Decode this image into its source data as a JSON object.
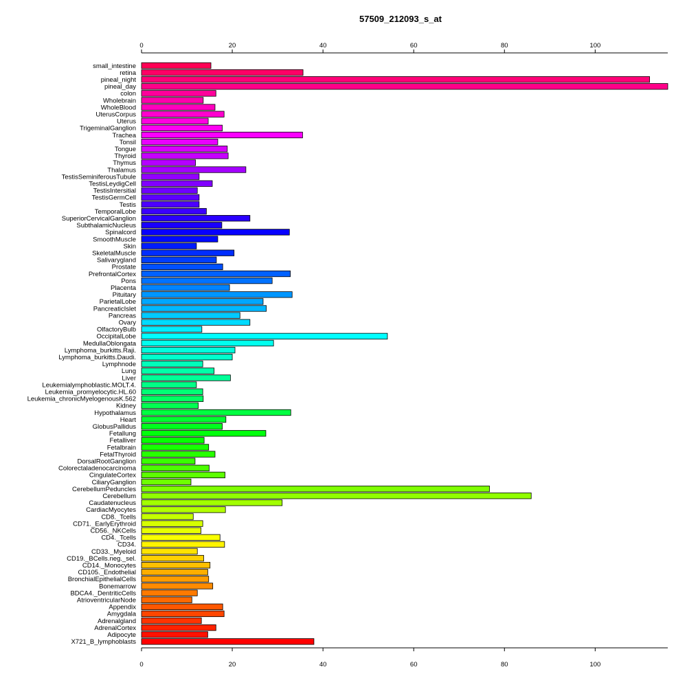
{
  "chart_data": {
    "type": "bar",
    "orientation": "horizontal",
    "title": "57509_212093_s_at",
    "xlabel": "",
    "ylabel": "",
    "xlim": [
      0,
      116
    ],
    "x_ticks": [
      "0",
      "20",
      "40",
      "60",
      "80",
      "100"
    ],
    "tick_values": [
      0,
      20,
      40,
      60,
      80,
      100
    ],
    "grid": false,
    "legend": "none",
    "categories": [
      "small_intestine",
      "retina",
      "pineal_night",
      "pineal_day",
      "colon",
      "Wholebrain",
      "WholeBlood",
      "UterusCorpus",
      "Uterus",
      "TrigeminalGanglion",
      "Trachea",
      "Tonsil",
      "Tongue",
      "Thyroid",
      "Thymus",
      "Thalamus",
      "TestisSeminiferousTubule",
      "TestisLeydigCell",
      "TestisIntersitial",
      "TestisGermCell",
      "Testis",
      "TemporalLobe",
      "SuperiorCervicalGanglion",
      "SubthalamicNucleus",
      "Spinalcord",
      "SmoothMuscle",
      "Skin",
      "SkeletalMuscle",
      "Salivarygland",
      "Prostate",
      "PrefrontalCortex",
      "Pons",
      "Placenta",
      "Pituitary",
      "ParietalLobe",
      "PancreaticIslet",
      "Pancreas",
      "Ovary",
      "OlfactoryBulb",
      "OccipitalLobe",
      "MedullaOblongata",
      "Lymphoma_burkitts.Raji.",
      "Lymphoma_burkitts.Daudi.",
      "Lymphnode",
      "Lung",
      "Liver",
      "Leukemialymphoblastic.MOLT.4.",
      "Leukemia_promyelocytic.HL.60",
      "Leukemia_chronicMyelogenousK.562",
      "Kidney",
      "Hypothalamus",
      "Heart",
      "GlobusPallidus",
      "Fetallung",
      "Fetalliver",
      "Fetalbrain",
      "FetalThyroid",
      "DorsalRootGanglion",
      "Colorectaladenocarcinoma",
      "CingulateCortex",
      "CiliaryGanglion",
      "CerebellumPeduncles",
      "Cerebellum",
      "Caudatenucleus",
      "CardiacMyocytes",
      "CD8._Tcells",
      "CD71._EarlyErythroid",
      "CD56._NKCells",
      "CD4._Tcells",
      "CD34.",
      "CD33._Myeloid",
      "CD19._BCells.neg._sel.",
      "CD14._Monocytes",
      "CD105._Endothelial",
      "BronchialEpithelialCells",
      "Bonemarrow",
      "BDCA4._DentriticCells",
      "AtrioventricularNode",
      "Appendix",
      "Amygdala",
      "Adrenalgland",
      "AdrenalCortex",
      "Adipocyte",
      "X721_B_lymphoblasts"
    ],
    "values": [
      15.3,
      35.6,
      112,
      116,
      16.4,
      13.6,
      16.2,
      18.2,
      14.7,
      17.8,
      35.5,
      16.8,
      18.9,
      19.1,
      11.9,
      23,
      12.7,
      15.6,
      12.3,
      12.7,
      12.7,
      14.3,
      23.9,
      17.7,
      32.6,
      16.8,
      12.1,
      20.4,
      16.5,
      17.9,
      32.8,
      28.8,
      19.4,
      33.2,
      26.8,
      27.5,
      21.7,
      23.9,
      13.3,
      54.2,
      29.1,
      20.6,
      20,
      13.5,
      16,
      19.6,
      12.1,
      13.5,
      13.6,
      12.5,
      32.9,
      18.6,
      17.8,
      27.4,
      13.8,
      14.8,
      16.2,
      11.8,
      14.9,
      18.4,
      10.9,
      76.7,
      85.9,
      31,
      18.5,
      11.4,
      13.5,
      13.1,
      17.3,
      18.3,
      12.3,
      13.7,
      15.1,
      14.6,
      14.8,
      15.7,
      12.3,
      11.1,
      17.9,
      18.2,
      13.2,
      16.4,
      14.6,
      38
    ]
  }
}
